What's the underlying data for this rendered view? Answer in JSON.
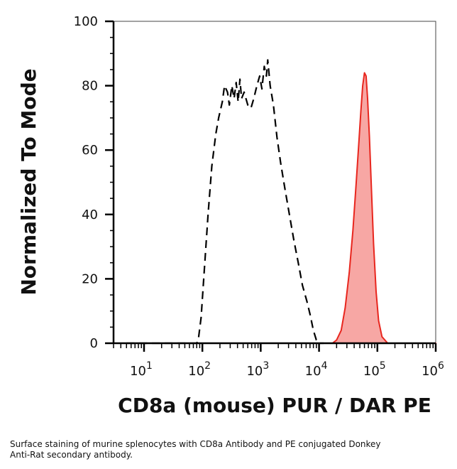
{
  "chart_data": {
    "type": "histogram",
    "ylabel": "Normalized To Mode",
    "xlabel": "CD8a (mouse) PUR / DAR PE",
    "x_scale": "log",
    "xlim": [
      3,
      1000000
    ],
    "ylim": [
      0,
      100
    ],
    "y_ticks": [
      0,
      20,
      40,
      60,
      80,
      100
    ],
    "x_ticks": [
      {
        "base": "10",
        "exp": "1",
        "value": 10
      },
      {
        "base": "10",
        "exp": "2",
        "value": 100
      },
      {
        "base": "10",
        "exp": "3",
        "value": 1000
      },
      {
        "base": "10",
        "exp": "4",
        "value": 10000
      },
      {
        "base": "10",
        "exp": "5",
        "value": 100000
      },
      {
        "base": "10",
        "exp": "6",
        "value": 1000000
      }
    ],
    "grid": false,
    "series": [
      {
        "style": "dashed",
        "color": "#000000",
        "points": [
          [
            5,
            0
          ],
          [
            80,
            0
          ],
          [
            85,
            1
          ],
          [
            95,
            8
          ],
          [
            110,
            25
          ],
          [
            125,
            40
          ],
          [
            145,
            55
          ],
          [
            170,
            65
          ],
          [
            190,
            70
          ],
          [
            220,
            75
          ],
          [
            240,
            80
          ],
          [
            270,
            78
          ],
          [
            290,
            74
          ],
          [
            320,
            80
          ],
          [
            350,
            76
          ],
          [
            380,
            81
          ],
          [
            410,
            75
          ],
          [
            440,
            82
          ],
          [
            470,
            76
          ],
          [
            520,
            78
          ],
          [
            600,
            74
          ],
          [
            680,
            73
          ],
          [
            760,
            76
          ],
          [
            860,
            80
          ],
          [
            960,
            83
          ],
          [
            1050,
            79
          ],
          [
            1150,
            86
          ],
          [
            1250,
            83
          ],
          [
            1320,
            88
          ],
          [
            1450,
            80
          ],
          [
            1650,
            74
          ],
          [
            1900,
            64
          ],
          [
            2200,
            56
          ],
          [
            2600,
            48
          ],
          [
            3100,
            40
          ],
          [
            3700,
            32
          ],
          [
            4400,
            25
          ],
          [
            5200,
            18
          ],
          [
            6200,
            13
          ],
          [
            7000,
            9
          ],
          [
            8000,
            4
          ],
          [
            9000,
            1
          ],
          [
            10000,
            0
          ],
          [
            12000,
            0
          ]
        ]
      },
      {
        "style": "filled",
        "color": "#e8261e",
        "fill": "#f7a7a4",
        "points": [
          [
            3,
            0
          ],
          [
            17000,
            0
          ],
          [
            20000,
            1
          ],
          [
            24000,
            4
          ],
          [
            28000,
            11
          ],
          [
            33000,
            22
          ],
          [
            38000,
            35
          ],
          [
            43000,
            49
          ],
          [
            48000,
            62
          ],
          [
            52000,
            72
          ],
          [
            56000,
            80
          ],
          [
            60000,
            84
          ],
          [
            64000,
            83
          ],
          [
            68000,
            76
          ],
          [
            73000,
            64
          ],
          [
            79000,
            48
          ],
          [
            86000,
            31
          ],
          [
            95000,
            16
          ],
          [
            105000,
            7
          ],
          [
            120000,
            2
          ],
          [
            150000,
            0
          ],
          [
            1000000,
            0
          ]
        ]
      }
    ]
  },
  "caption": {
    "line1": "Surface staining of murine splenocytes with CD8a Antibody and PE conjugated Donkey",
    "line2": "Anti-Rat secondary antibody."
  }
}
